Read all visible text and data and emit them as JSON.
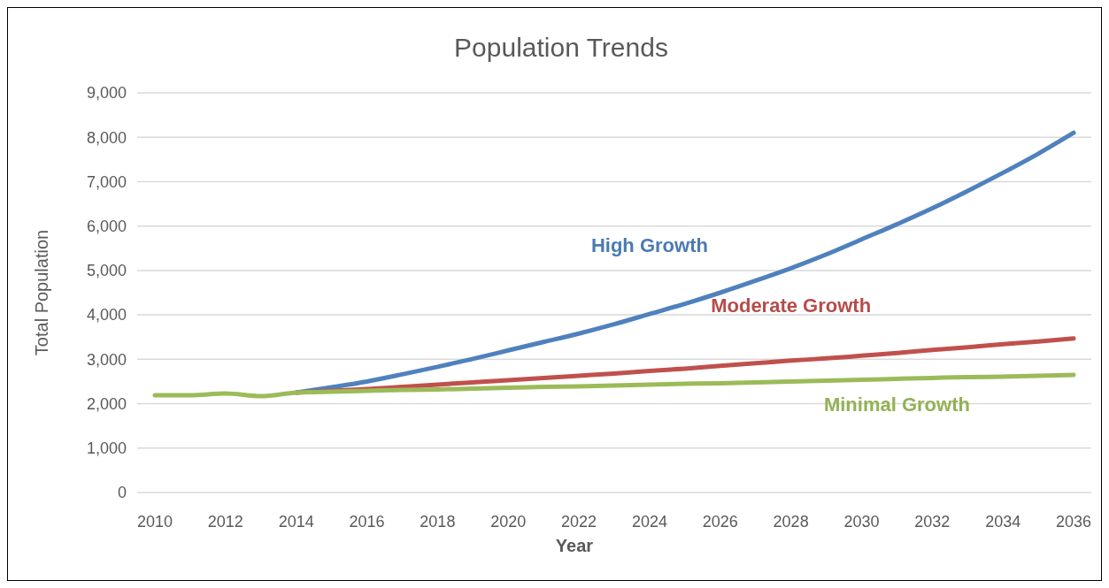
{
  "chart_data": {
    "type": "line",
    "title": "Population Trends",
    "xlabel": "Year",
    "ylabel": "Total Population",
    "x": [
      2010,
      2011,
      2012,
      2013,
      2014,
      2015,
      2016,
      2017,
      2018,
      2019,
      2020,
      2021,
      2022,
      2023,
      2024,
      2025,
      2026,
      2027,
      2028,
      2029,
      2030,
      2031,
      2032,
      2033,
      2034,
      2035,
      2036
    ],
    "series": [
      {
        "name": "High Growth",
        "color": "#4f81bd",
        "values": [
          null,
          null,
          null,
          null,
          2250,
          2370,
          2500,
          2660,
          2830,
          3010,
          3200,
          3390,
          3580,
          3790,
          4020,
          4250,
          4500,
          4770,
          5050,
          5360,
          5700,
          6040,
          6400,
          6790,
          7200,
          7630,
          8100
        ]
      },
      {
        "name": "Moderate Growth",
        "color": "#c0504d",
        "values": [
          null,
          null,
          null,
          null,
          2250,
          2290,
          2330,
          2380,
          2430,
          2480,
          2530,
          2580,
          2630,
          2680,
          2740,
          2790,
          2850,
          2910,
          2970,
          3020,
          3080,
          3140,
          3210,
          3270,
          3340,
          3400,
          3470
        ]
      },
      {
        "name": "Minimal Growth",
        "color": "#9bbb59",
        "values": [
          2190,
          2190,
          2230,
          2170,
          2250,
          2270,
          2290,
          2310,
          2320,
          2340,
          2360,
          2380,
          2390,
          2410,
          2430,
          2450,
          2460,
          2480,
          2500,
          2520,
          2540,
          2560,
          2580,
          2600,
          2610,
          2630,
          2650
        ]
      }
    ],
    "xlim": [
      2009.5,
      2036.5
    ],
    "xticks": [
      2010,
      2012,
      2014,
      2016,
      2018,
      2020,
      2022,
      2024,
      2026,
      2028,
      2030,
      2032,
      2034,
      2036
    ],
    "ylim": [
      0,
      9000
    ],
    "yticks": [
      {
        "value": 0,
        "label": "0"
      },
      {
        "value": 1000,
        "label": "1,000"
      },
      {
        "value": 2000,
        "label": "2,000"
      },
      {
        "value": 3000,
        "label": "3,000"
      },
      {
        "value": 4000,
        "label": "4,000"
      },
      {
        "value": 5000,
        "label": "5,000"
      },
      {
        "value": 6000,
        "label": "6,000"
      },
      {
        "value": 7000,
        "label": "7,000"
      },
      {
        "value": 8000,
        "label": "8,000"
      },
      {
        "value": 9000,
        "label": "9,000"
      }
    ],
    "grid": "y",
    "legend": false,
    "marker": "none",
    "line_style": "solid"
  }
}
